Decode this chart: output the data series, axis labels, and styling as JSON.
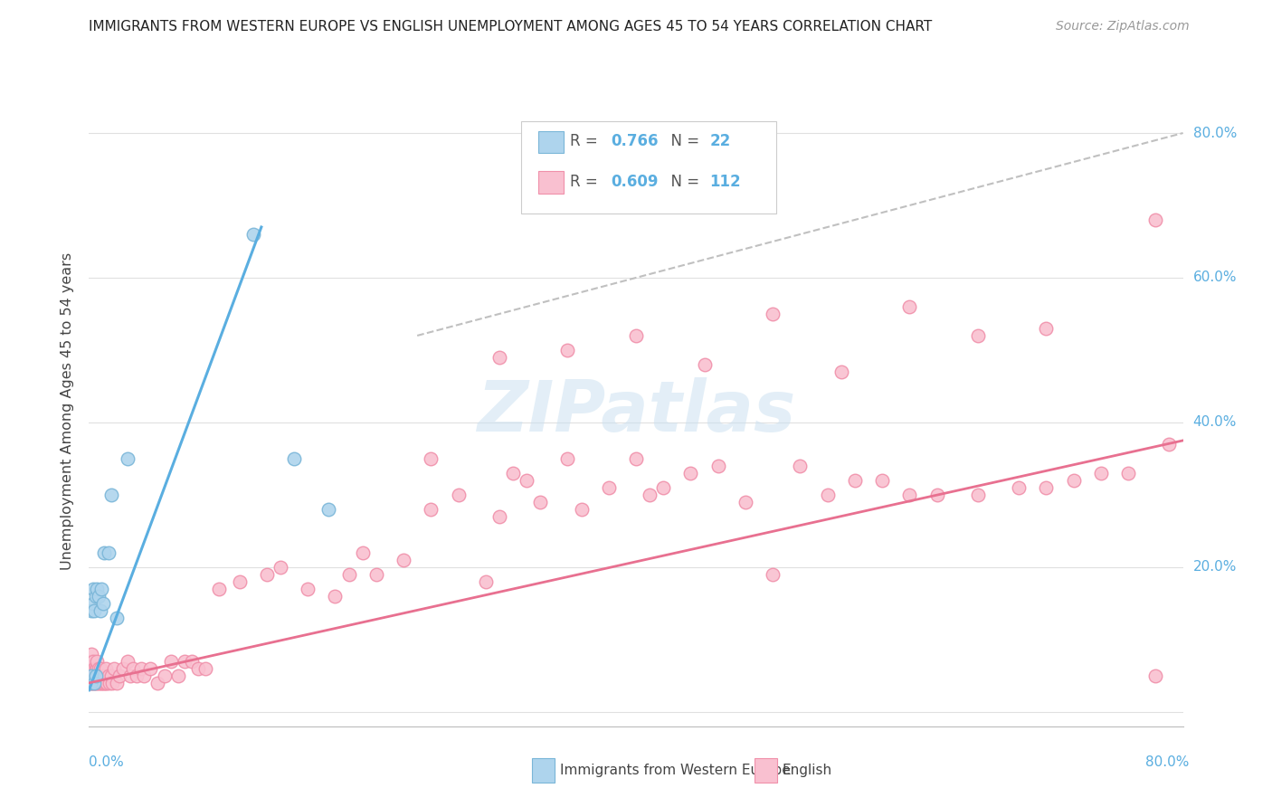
{
  "title": "IMMIGRANTS FROM WESTERN EUROPE VS ENGLISH UNEMPLOYMENT AMONG AGES 45 TO 54 YEARS CORRELATION CHART",
  "source": "Source: ZipAtlas.com",
  "ylabel": "Unemployment Among Ages 45 to 54 years",
  "xlim": [
    0.0,
    0.8
  ],
  "ylim": [
    -0.02,
    0.85
  ],
  "color_blue_face": "#aed4ed",
  "color_blue_edge": "#7ab6d8",
  "color_pink_face": "#f9c0d0",
  "color_pink_edge": "#f090aa",
  "color_blue_line": "#5aaee0",
  "color_pink_line": "#e87090",
  "color_dashed": "#c0c0c0",
  "color_ytick": "#5aaee0",
  "color_grid": "#e0e0e0",
  "blue_x": [
    0.001,
    0.002,
    0.002,
    0.003,
    0.003,
    0.004,
    0.004,
    0.005,
    0.005,
    0.006,
    0.007,
    0.008,
    0.009,
    0.01,
    0.011,
    0.014,
    0.016,
    0.02,
    0.028,
    0.12,
    0.15,
    0.175
  ],
  "blue_y": [
    0.04,
    0.05,
    0.14,
    0.15,
    0.17,
    0.04,
    0.14,
    0.16,
    0.05,
    0.17,
    0.16,
    0.14,
    0.17,
    0.15,
    0.22,
    0.22,
    0.3,
    0.13,
    0.35,
    0.66,
    0.35,
    0.28
  ],
  "pink_x_cluster": [
    0.001,
    0.001,
    0.001,
    0.002,
    0.002,
    0.002,
    0.002,
    0.002,
    0.003,
    0.003,
    0.003,
    0.003,
    0.004,
    0.004,
    0.004,
    0.005,
    0.005,
    0.005,
    0.006,
    0.006,
    0.006,
    0.006,
    0.007,
    0.007,
    0.007,
    0.008,
    0.008,
    0.008,
    0.009,
    0.009,
    0.01,
    0.01,
    0.011,
    0.011,
    0.012,
    0.012,
    0.013,
    0.014,
    0.015,
    0.016,
    0.017,
    0.018,
    0.02,
    0.022,
    0.025,
    0.028,
    0.03,
    0.032,
    0.035,
    0.038,
    0.04,
    0.045,
    0.05,
    0.055,
    0.06,
    0.065,
    0.07,
    0.075,
    0.08,
    0.085
  ],
  "pink_y_cluster": [
    0.04,
    0.05,
    0.06,
    0.04,
    0.05,
    0.06,
    0.07,
    0.08,
    0.04,
    0.05,
    0.06,
    0.07,
    0.04,
    0.05,
    0.06,
    0.04,
    0.05,
    0.06,
    0.04,
    0.05,
    0.06,
    0.07,
    0.04,
    0.05,
    0.06,
    0.04,
    0.05,
    0.06,
    0.04,
    0.05,
    0.04,
    0.05,
    0.04,
    0.05,
    0.04,
    0.06,
    0.04,
    0.05,
    0.04,
    0.05,
    0.04,
    0.06,
    0.04,
    0.05,
    0.06,
    0.07,
    0.05,
    0.06,
    0.05,
    0.06,
    0.05,
    0.06,
    0.04,
    0.05,
    0.07,
    0.05,
    0.07,
    0.07,
    0.06,
    0.06
  ],
  "pink_x_spread": [
    0.095,
    0.11,
    0.13,
    0.14,
    0.16,
    0.18,
    0.19,
    0.21,
    0.23,
    0.25,
    0.27,
    0.29,
    0.3,
    0.31,
    0.32,
    0.33,
    0.35,
    0.36,
    0.38,
    0.4,
    0.41,
    0.42,
    0.44,
    0.46,
    0.48,
    0.5,
    0.52,
    0.54,
    0.56,
    0.58,
    0.6,
    0.62,
    0.65,
    0.68,
    0.7,
    0.72,
    0.74,
    0.76,
    0.78,
    0.79,
    0.4,
    0.5,
    0.55,
    0.6,
    0.65,
    0.7,
    0.78,
    0.35,
    0.45,
    0.25,
    0.3,
    0.2
  ],
  "pink_y_spread": [
    0.17,
    0.18,
    0.19,
    0.2,
    0.17,
    0.16,
    0.19,
    0.19,
    0.21,
    0.28,
    0.3,
    0.18,
    0.27,
    0.33,
    0.32,
    0.29,
    0.35,
    0.28,
    0.31,
    0.35,
    0.3,
    0.31,
    0.33,
    0.34,
    0.29,
    0.19,
    0.34,
    0.3,
    0.32,
    0.32,
    0.3,
    0.3,
    0.3,
    0.31,
    0.31,
    0.32,
    0.33,
    0.33,
    0.05,
    0.37,
    0.52,
    0.55,
    0.47,
    0.56,
    0.52,
    0.53,
    0.68,
    0.5,
    0.48,
    0.35,
    0.49,
    0.22
  ],
  "blue_line": [
    [
      0.0,
      0.03
    ],
    [
      0.126,
      0.67
    ]
  ],
  "pink_line": [
    [
      0.0,
      0.04
    ],
    [
      0.8,
      0.375
    ]
  ],
  "dashed_line": [
    [
      0.24,
      0.52
    ],
    [
      0.8,
      0.8
    ]
  ],
  "background_color": "#ffffff",
  "watermark_color": "#c8dff0",
  "watermark_alpha": 0.5
}
